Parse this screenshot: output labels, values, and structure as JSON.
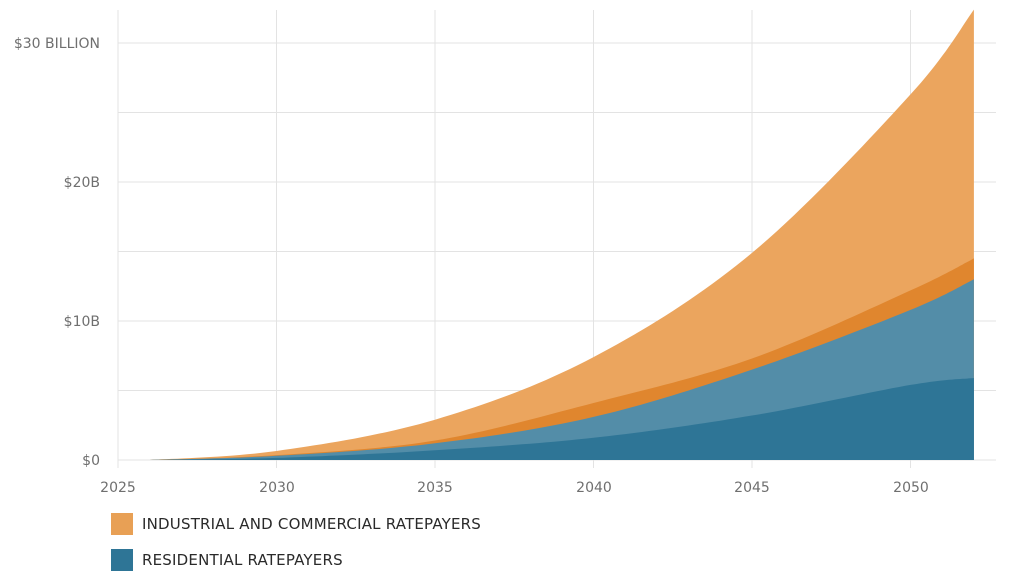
{
  "chart_data": {
    "type": "area",
    "title": "",
    "xlabel": "",
    "ylabel": "",
    "xlim": [
      2025,
      2053
    ],
    "ylim": [
      0,
      33
    ],
    "x_ticks": [
      2025,
      2030,
      2035,
      2040,
      2045,
      2050
    ],
    "x_tick_labels": [
      "2025",
      "2030",
      "2035",
      "2040",
      "2045",
      "2050"
    ],
    "y_ticks": [
      0,
      10,
      20,
      30
    ],
    "y_tick_labels": [
      "$0",
      "$10B",
      "$20B",
      "$30 BILLION"
    ],
    "y_minor_grid": [
      5,
      15,
      25
    ],
    "grid": true,
    "legend_position": "bottom-left",
    "x": [
      2026,
      2030,
      2035,
      2040,
      2045,
      2050,
      2052
    ],
    "boundaries": [
      {
        "color": "#2e7596",
        "values": [
          0,
          0.15,
          0.7,
          1.6,
          3.2,
          5.4,
          5.9
        ]
      },
      {
        "color": "#538da8",
        "values": [
          0,
          0.3,
          1.2,
          3.1,
          6.5,
          10.8,
          13.0
        ]
      },
      {
        "color": "#e0862e",
        "values": [
          0,
          0.35,
          1.4,
          4.1,
          7.3,
          12.2,
          14.5
        ]
      },
      {
        "color": "#eba55e",
        "values": [
          0,
          0.65,
          2.9,
          7.4,
          14.9,
          26.3,
          32.4
        ]
      }
    ],
    "legend": [
      {
        "label": "INDUSTRIAL AND COMMERCIAL RATEPAYERS",
        "color": "#e8a055"
      },
      {
        "label": "RESIDENTIAL RATEPAYERS",
        "color": "#2e7596"
      }
    ]
  }
}
